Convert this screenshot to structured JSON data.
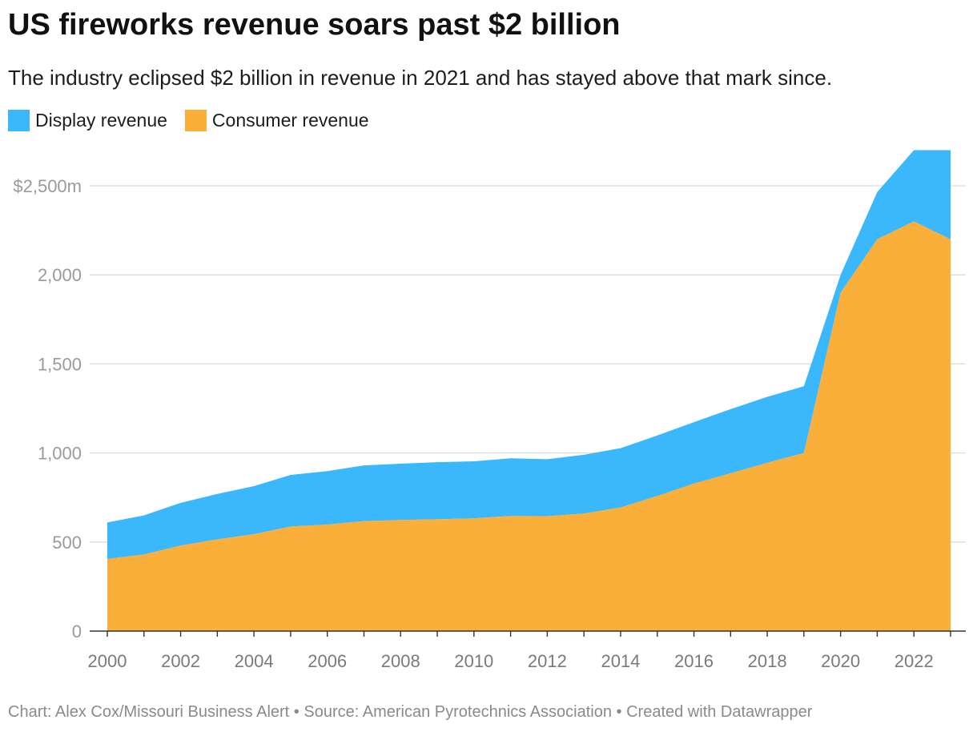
{
  "header": {
    "title": "US fireworks revenue soars past $2 billion",
    "subtitle": "The industry eclipsed $2 billion in revenue in 2021 and has stayed above that mark since."
  },
  "footer": {
    "text": "Chart: Alex Cox/Missouri Business Alert • Source: American Pyrotechnics Association • Created with Datawrapper"
  },
  "colors": {
    "display": "#3bb7fc",
    "consumer": "#faaf3b",
    "grid": "#dcdcdc",
    "axis": "#333333"
  },
  "chart_data": {
    "type": "area",
    "stacked": true,
    "title": "US fireworks revenue soars past $2 billion",
    "subtitle": "The industry eclipsed $2 billion in revenue in 2021 and has stayed above that mark since.",
    "x": [
      2000,
      2001,
      2002,
      2003,
      2004,
      2005,
      2006,
      2007,
      2008,
      2009,
      2010,
      2011,
      2012,
      2013,
      2014,
      2015,
      2016,
      2017,
      2018,
      2019,
      2020,
      2021,
      2022,
      2023
    ],
    "series": [
      {
        "name": "Consumer revenue",
        "color": "#faaf3b",
        "values": [
          405,
          430,
          480,
          515,
          544,
          587,
          598,
          617,
          624,
          628,
          633,
          646,
          645,
          660,
          694,
          758,
          828,
          886,
          945,
          1000,
          1900,
          2200,
          2300,
          2200
        ]
      },
      {
        "name": "Display revenue",
        "color": "#3bb7fc",
        "values": [
          205,
          220,
          240,
          255,
          270,
          290,
          300,
          313,
          316,
          320,
          320,
          324,
          320,
          330,
          333,
          340,
          345,
          360,
          370,
          375,
          100,
          265,
          400,
          500
        ]
      }
    ],
    "legend": [
      "Display revenue",
      "Consumer revenue"
    ],
    "legend_position": "top-left",
    "ylim": [
      0,
      2700
    ],
    "y_ticks": [
      0,
      500,
      1000,
      1500,
      2000,
      2500
    ],
    "y_tick_labels": [
      "0",
      "500",
      "1,000",
      "1,500",
      "2,000",
      "$2,500m"
    ],
    "x_ticks": [
      2000,
      2002,
      2004,
      2006,
      2008,
      2010,
      2012,
      2014,
      2016,
      2018,
      2020,
      2022
    ],
    "x_tick_labels": [
      "2000",
      "2002",
      "2004",
      "2006",
      "2008",
      "2010",
      "2012",
      "2014",
      "2016",
      "2018",
      "2020",
      "2022"
    ],
    "grid": true
  }
}
